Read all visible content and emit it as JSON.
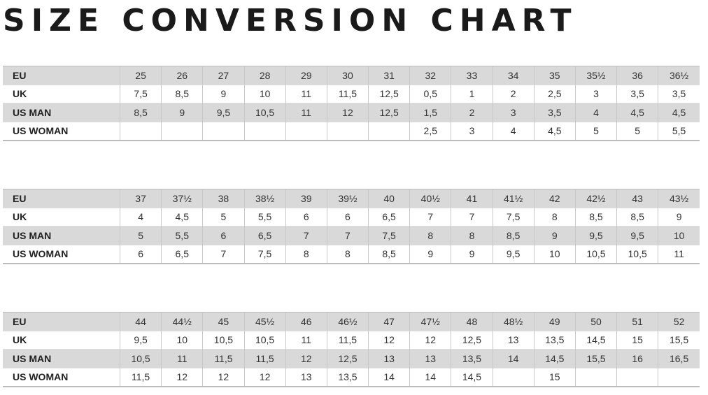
{
  "title": "SIZE CONVERSION CHART",
  "tables": [
    {
      "rows": [
        {
          "label": "EU",
          "cells": [
            "25",
            "26",
            "27",
            "28",
            "29",
            "30",
            "31",
            "32",
            "33",
            "34",
            "35",
            "35½",
            "36",
            "36½"
          ]
        },
        {
          "label": "UK",
          "cells": [
            "7,5",
            "8,5",
            "9",
            "10",
            "11",
            "11,5",
            "12,5",
            "0,5",
            "1",
            "2",
            "2,5",
            "3",
            "3,5",
            "3,5"
          ]
        },
        {
          "label": "US MAN",
          "cells": [
            "8,5",
            "9",
            "9,5",
            "10,5",
            "11",
            "12",
            "12,5",
            "1,5",
            "2",
            "3",
            "3,5",
            "4",
            "4,5",
            "4,5"
          ]
        },
        {
          "label": "US WOMAN",
          "cells": [
            "",
            "",
            "",
            "",
            "",
            "",
            "",
            "2,5",
            "3",
            "4",
            "4,5",
            "5",
            "5",
            "5,5"
          ]
        }
      ]
    },
    {
      "rows": [
        {
          "label": "EU",
          "cells": [
            "37",
            "37½",
            "38",
            "38½",
            "39",
            "39½",
            "40",
            "40½",
            "41",
            "41½",
            "42",
            "42½",
            "43",
            "43½"
          ]
        },
        {
          "label": "UK",
          "cells": [
            "4",
            "4,5",
            "5",
            "5,5",
            "6",
            "6",
            "6,5",
            "7",
            "7",
            "7,5",
            "8",
            "8,5",
            "8,5",
            "9"
          ]
        },
        {
          "label": "US MAN",
          "cells": [
            "5",
            "5,5",
            "6",
            "6,5",
            "7",
            "7",
            "7,5",
            "8",
            "8",
            "8,5",
            "9",
            "9,5",
            "9,5",
            "10"
          ]
        },
        {
          "label": "US WOMAN",
          "cells": [
            "6",
            "6,5",
            "7",
            "7,5",
            "8",
            "8",
            "8,5",
            "9",
            "9",
            "9,5",
            "10",
            "10,5",
            "10,5",
            "11"
          ]
        }
      ]
    },
    {
      "rows": [
        {
          "label": "EU",
          "cells": [
            "44",
            "44½",
            "45",
            "45½",
            "46",
            "46½",
            "47",
            "47½",
            "48",
            "48½",
            "49",
            "50",
            "51",
            "52"
          ]
        },
        {
          "label": "UK",
          "cells": [
            "9,5",
            "10",
            "10,5",
            "10,5",
            "11",
            "11,5",
            "12",
            "12",
            "12,5",
            "13",
            "13,5",
            "14,5",
            "15",
            "15,5"
          ]
        },
        {
          "label": "US MAN",
          "cells": [
            "10,5",
            "11",
            "11,5",
            "11,5",
            "12",
            "12,5",
            "13",
            "13",
            "13,5",
            "14",
            "14,5",
            "15,5",
            "16",
            "16,5"
          ]
        },
        {
          "label": "US WOMAN",
          "cells": [
            "11,5",
            "12",
            "12",
            "12",
            "13",
            "13,5",
            "14",
            "14",
            "14,5",
            "",
            "15",
            "",
            "",
            ""
          ]
        }
      ]
    }
  ]
}
